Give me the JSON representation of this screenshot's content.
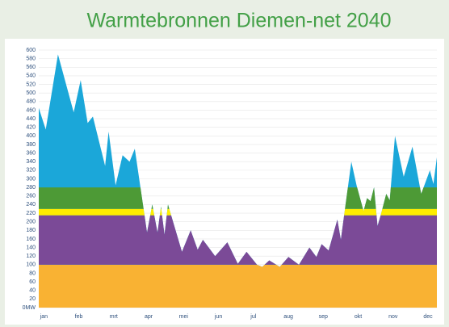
{
  "chart_data": {
    "type": "band-area",
    "title": "Warmtebronnen Diemen-net 2040",
    "xlim": [
      -0.1,
      11.3
    ],
    "xticks": [
      {
        "value": 0,
        "label": "jan"
      },
      {
        "value": 1,
        "label": "feb"
      },
      {
        "value": 2,
        "label": "mrt"
      },
      {
        "value": 3,
        "label": "apr"
      },
      {
        "value": 4,
        "label": "mei"
      },
      {
        "value": 5,
        "label": "jun"
      },
      {
        "value": 6,
        "label": "jul"
      },
      {
        "value": 7,
        "label": "aug"
      },
      {
        "value": 8,
        "label": "sep"
      },
      {
        "value": 9,
        "label": "okt"
      },
      {
        "value": 10,
        "label": "nov"
      },
      {
        "value": 11,
        "label": "dec"
      }
    ],
    "ylim": [
      0,
      600
    ],
    "yticks": [
      {
        "value": 0,
        "label": "0MW"
      },
      20,
      40,
      60,
      80,
      100,
      120,
      140,
      160,
      180,
      200,
      220,
      240,
      260,
      280,
      300,
      320,
      340,
      360,
      380,
      400,
      420,
      440,
      460,
      480,
      500,
      520,
      540,
      560,
      580,
      600
    ],
    "grid": true,
    "demand": {
      "color": "#1ba7d9",
      "x": [
        -0.1,
        0.1,
        0.45,
        0.9,
        1.1,
        1.3,
        1.45,
        1.8,
        1.9,
        2.1,
        2.3,
        2.5,
        2.65,
        3.0,
        3.15,
        3.3,
        3.4,
        3.5,
        3.6,
        4.0,
        4.25,
        4.45,
        4.6,
        4.95,
        5.3,
        5.6,
        5.85,
        6.15,
        6.3,
        6.5,
        6.8,
        7.05,
        7.35,
        7.65,
        7.85,
        8.0,
        8.2,
        8.45,
        8.55,
        8.85,
        9.0,
        9.2,
        9.3,
        9.4,
        9.5,
        9.6,
        9.7,
        9.85,
        9.95,
        10.1,
        10.35,
        10.6,
        10.85,
        11.1,
        11.2,
        11.3
      ],
      "values": [
        465,
        415,
        590,
        455,
        530,
        430,
        445,
        330,
        410,
        285,
        355,
        340,
        370,
        175,
        240,
        175,
        235,
        170,
        240,
        130,
        180,
        135,
        158,
        120,
        152,
        102,
        130,
        100,
        95,
        110,
        95,
        118,
        100,
        140,
        118,
        148,
        133,
        205,
        158,
        340,
        285,
        225,
        255,
        248,
        280,
        190,
        218,
        265,
        250,
        400,
        305,
        375,
        265,
        320,
        288,
        350
      ]
    },
    "bands": [
      {
        "from": 0,
        "to": 100,
        "color": "#f9b233"
      },
      {
        "from": 100,
        "to": 215,
        "color": "#7b4a97"
      },
      {
        "from": 215,
        "to": 230,
        "color": "#ffed00"
      },
      {
        "from": 230,
        "to": 280,
        "color": "#4d9a36"
      }
    ]
  }
}
